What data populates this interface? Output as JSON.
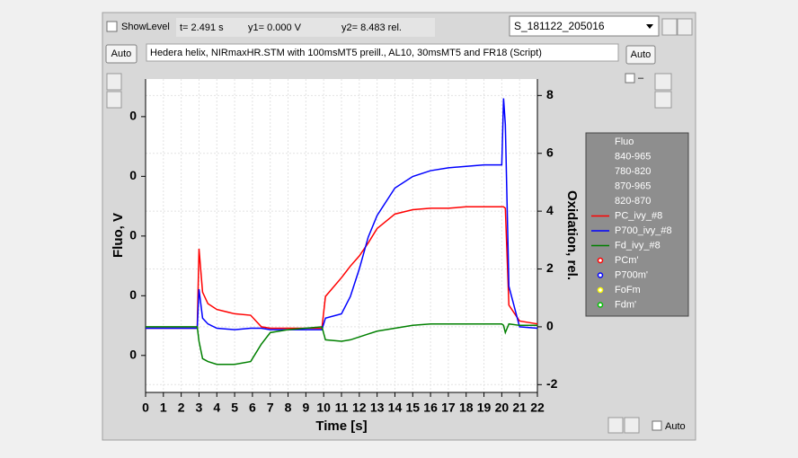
{
  "ui": {
    "show_level": "ShowLevel",
    "t_readout": "t= 2.491 s",
    "y1_readout": "y1= 0.000 V",
    "y2_readout": "y2= 8.483 rel.",
    "dataset": "S_181122_205016",
    "auto_left": "Auto",
    "description": "Hedera helix, NIRmaxHR.STM with 100msMT5 preill., AL10, 30msMT5 and FR18 (Script)",
    "auto_right": "Auto",
    "dash": "–",
    "auto_bottom": "Auto"
  },
  "chart_data": {
    "type": "line",
    "xlabel": "Time [s]",
    "ylabel": "Fluo, V",
    "y2label": "Oxidation, rel.",
    "x": [
      0,
      2.9,
      3,
      3.2,
      3.5,
      4,
      5,
      5.9,
      6.5,
      7,
      8,
      9.9,
      10.1,
      11,
      11.5,
      12,
      12.5,
      13,
      14,
      15,
      16,
      17,
      18,
      19,
      20,
      20.1,
      20.2,
      20.4,
      21,
      22
    ],
    "xlim": [
      0,
      22
    ],
    "xticks": [
      0,
      1,
      2,
      3,
      4,
      5,
      6,
      7,
      8,
      9,
      10,
      11,
      12,
      13,
      14,
      15,
      16,
      17,
      18,
      19,
      20,
      21,
      22
    ],
    "ylim": [
      -0.0062,
      0.0463
    ],
    "yticks": [
      {
        "value": 0.04,
        "label": "0"
      },
      {
        "value": 0.03,
        "label": "0"
      },
      {
        "value": 0.02,
        "label": "0"
      },
      {
        "value": 0.01,
        "label": "0"
      },
      {
        "value": 0,
        "label": "0"
      }
    ],
    "y2lim": [
      -2.27,
      8.57
    ],
    "y2ticks": [
      8,
      6,
      4,
      2,
      0,
      -2
    ],
    "grid": true,
    "series": [
      {
        "name": "PC_ivy_#8",
        "color": "#ff0000",
        "axis": "y2",
        "values": [
          -0.05,
          -0.05,
          2.7,
          1.2,
          0.8,
          0.6,
          0.45,
          0.4,
          0,
          -0.05,
          -0.05,
          -0.05,
          1.05,
          1.7,
          2.1,
          2.45,
          2.9,
          3.4,
          3.9,
          4.05,
          4.1,
          4.1,
          4.15,
          4.15,
          4.15,
          4.15,
          4.1,
          0.75,
          0.2,
          0.1
        ]
      },
      {
        "name": "P700_ivy_#8",
        "color": "#0000ff",
        "axis": "y2",
        "values": [
          -0.05,
          -0.05,
          1.3,
          0.3,
          0.1,
          -0.05,
          -0.1,
          -0.05,
          -0.05,
          -0.1,
          -0.1,
          -0.1,
          0.3,
          0.45,
          1.05,
          2.0,
          3.1,
          3.85,
          4.8,
          5.2,
          5.4,
          5.5,
          5.55,
          5.6,
          5.6,
          7.9,
          7.0,
          1.4,
          0,
          -0.05
        ]
      },
      {
        "name": "Fd_ivy_#8",
        "color": "#008000",
        "axis": "y2",
        "values": [
          0,
          0,
          -0.5,
          -1.1,
          -1.2,
          -1.3,
          -1.3,
          -1.2,
          -0.6,
          -0.2,
          -0.1,
          0,
          -0.45,
          -0.5,
          -0.45,
          -0.35,
          -0.25,
          -0.15,
          -0.05,
          0.05,
          0.1,
          0.1,
          0.1,
          0.1,
          0.1,
          0.05,
          -0.2,
          0.1,
          0.05,
          0.05
        ]
      }
    ],
    "legend_top": [
      "Fluo",
      "840-965",
      "780-820",
      "870-965",
      "820-870"
    ],
    "legend_points": [
      {
        "name": "PCm'",
        "color": "#ff0000"
      },
      {
        "name": "P700m'",
        "color": "#0000ff"
      },
      {
        "name": "FoFm",
        "color": "#ffff00"
      },
      {
        "name": "Fdm'",
        "color": "#00c000"
      }
    ]
  }
}
